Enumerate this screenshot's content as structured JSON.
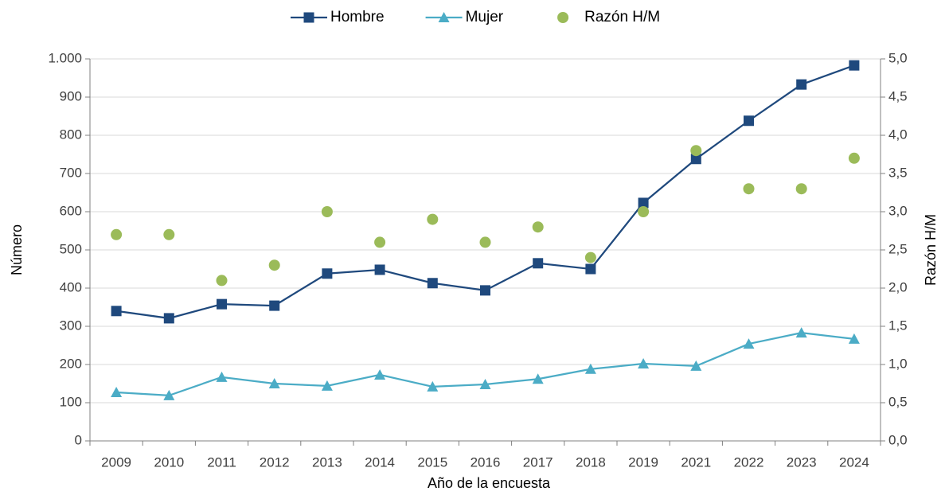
{
  "chart_data": {
    "type": "line",
    "y_label": "Número",
    "y2_label": "Razón H/M",
    "x_label": "Año de la encuesta",
    "categories": [
      "2009",
      "2010",
      "2011",
      "2012",
      "2013",
      "2014",
      "2015",
      "2016",
      "2017",
      "2018",
      "2019",
      "2021",
      "2022",
      "2023",
      "2024"
    ],
    "series": [
      {
        "name": "Hombre",
        "color": "#1f497d",
        "marker": "square",
        "line": true,
        "values": [
          340,
          321,
          358,
          354,
          438,
          448,
          413,
          394,
          465,
          450,
          623,
          738,
          838,
          933,
          983
        ]
      },
      {
        "name": "Mujer",
        "color": "#4bacc6",
        "marker": "triangle",
        "line": true,
        "values": [
          127,
          119,
          167,
          150,
          144,
          173,
          142,
          148,
          162,
          188,
          202,
          196,
          254,
          283,
          267
        ]
      },
      {
        "name": "Razón H/M",
        "color": "#9bbb59",
        "marker": "circle",
        "line": false,
        "axis": "y2",
        "values": [
          2.7,
          2.7,
          2.1,
          2.3,
          3.0,
          2.6,
          2.9,
          2.6,
          2.8,
          2.4,
          3.0,
          3.8,
          3.3,
          3.3,
          3.7
        ]
      }
    ],
    "ylim": [
      0,
      1000
    ],
    "yticks": [
      0,
      100,
      200,
      300,
      400,
      500,
      600,
      700,
      800,
      900,
      {
        "value": 1000,
        "label": "1.000"
      }
    ],
    "y2lim": [
      0,
      5
    ],
    "y2ticks": [
      {
        "value": 0,
        "label": "0,0"
      },
      {
        "value": 0.5,
        "label": "0,5"
      },
      {
        "value": 1,
        "label": "1,0"
      },
      {
        "value": 1.5,
        "label": "1,5"
      },
      {
        "value": 2,
        "label": "2,0"
      },
      {
        "value": 2.5,
        "label": "2,5"
      },
      {
        "value": 3,
        "label": "3,0"
      },
      {
        "value": 3.5,
        "label": "3,5"
      },
      {
        "value": 4,
        "label": "4,0"
      },
      {
        "value": 4.5,
        "label": "4,5"
      },
      {
        "value": 5,
        "label": "5,0"
      }
    ],
    "grid": true,
    "legend": "top"
  }
}
